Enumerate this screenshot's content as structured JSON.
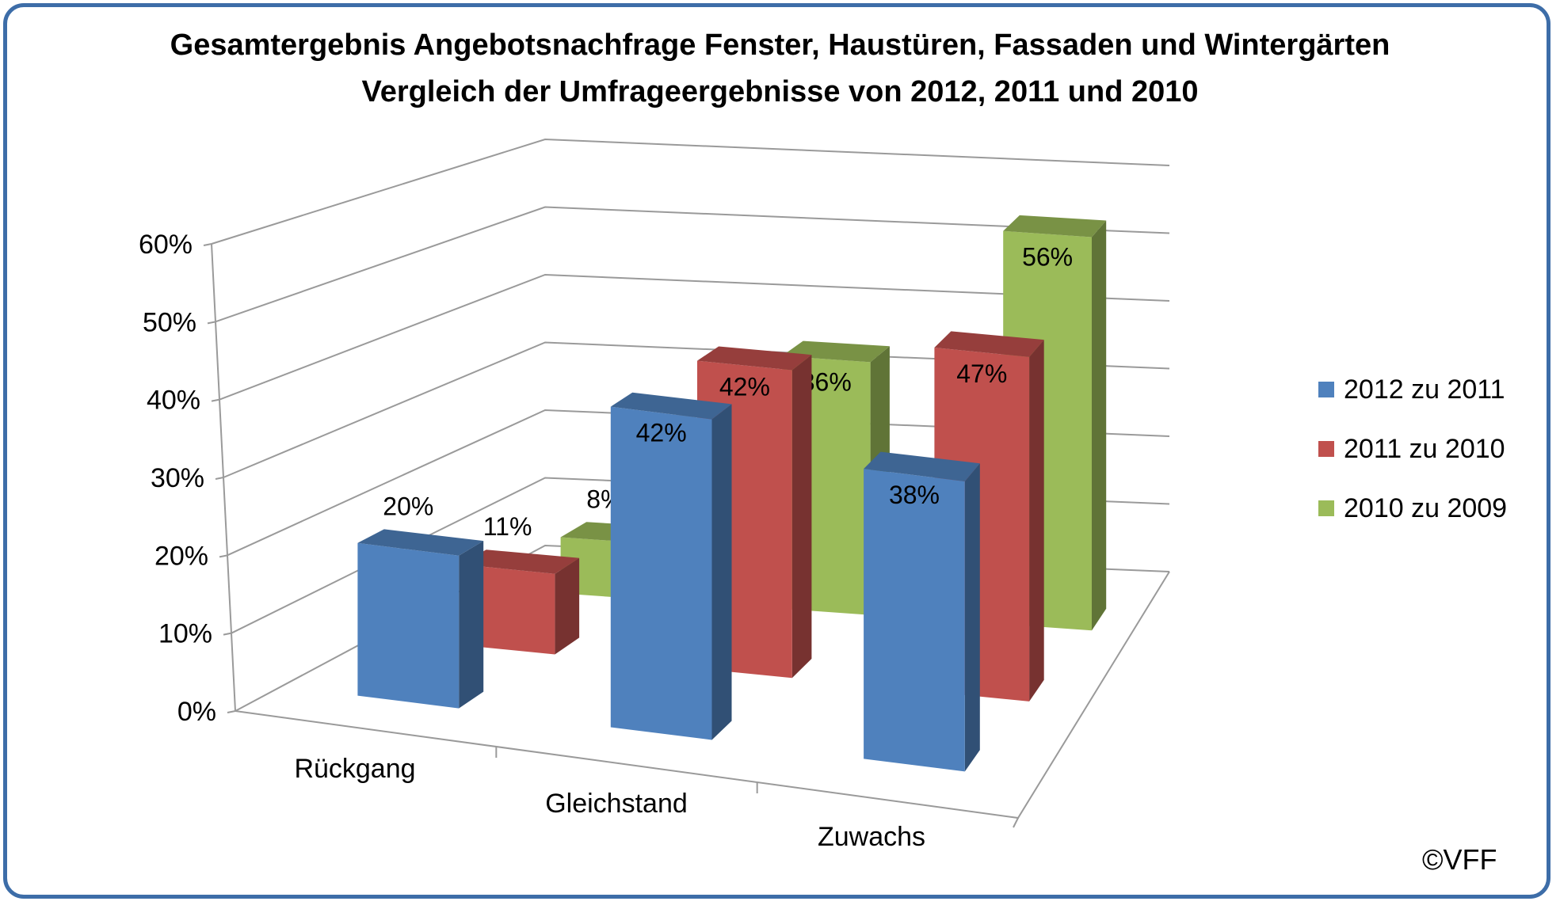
{
  "chart_data": {
    "type": "bar",
    "title": "Gesamtergebnis Angebotsnachfrage Fenster, Haustüren, Fassaden und Wintergärten",
    "subtitle": "Vergleich der Umfrageergebnisse von 2012, 2011 und 2010",
    "categories": [
      "Rückgang",
      "Gleichstand",
      "Zuwachs"
    ],
    "series": [
      {
        "name": "2012 zu 2011",
        "values": [
          20,
          42,
          38
        ],
        "labels": [
          "20%",
          "42%",
          "38%"
        ],
        "color": "#4f81bd"
      },
      {
        "name": "2011 zu 2010",
        "values": [
          11,
          42,
          47
        ],
        "labels": [
          "11%",
          "42%",
          "47%"
        ],
        "color": "#c0504d"
      },
      {
        "name": "2010 zu 2009",
        "values": [
          8,
          36,
          56
        ],
        "labels": [
          "8%",
          "36%",
          "56%"
        ],
        "color": "#9bbb59"
      }
    ],
    "ylim": [
      0,
      60
    ],
    "yticks": [
      "0%",
      "10%",
      "20%",
      "30%",
      "40%",
      "50%",
      "60%"
    ],
    "grid": true,
    "legend": "right",
    "style": "3d-clustered-column"
  },
  "copyright": "©VFF"
}
